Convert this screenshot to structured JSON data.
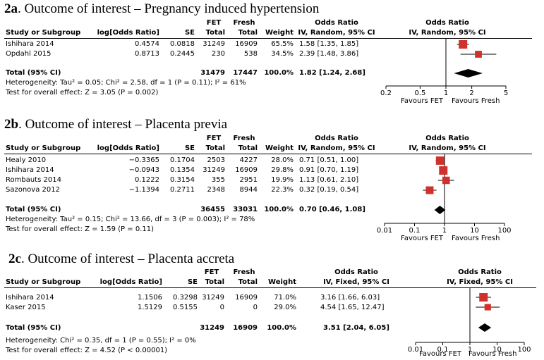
{
  "panels": [
    {
      "title_bold": "2a",
      "title_rest": ". Outcome of interest – Pregnancy induced hypertension",
      "hdr": {
        "study": "Study or Subgroup",
        "logor": "log[Odds Ratio]",
        "se": "SE",
        "fet_top": "FET",
        "fet": "Total",
        "fresh_top": "Fresh",
        "fresh": "Total",
        "weight": "Weight",
        "or_top": "Odds Ratio",
        "or": "IV, Random, 95% CI",
        "plot_top": "Odds Ratio",
        "plot": "IV, Random, 95% CI"
      },
      "rows": [
        {
          "study": "Ishihara 2014",
          "logor": "0.4574",
          "se": "0.0818",
          "fet": "31249",
          "fresh": "16909",
          "weight": "65.5%",
          "ci": "1.58 [1.35, 1.85]"
        },
        {
          "study": "Opdahl 2015",
          "logor": "0.8713",
          "se": "0.2445",
          "fet": "230",
          "fresh": "538",
          "weight": "34.5%",
          "ci": "2.39 [1.48, 3.86]"
        }
      ],
      "total": {
        "label": "Total (95% CI)",
        "fet": "31479",
        "fresh": "17447",
        "weight": "100.0%",
        "ci": "1.82 [1.24, 2.68]"
      },
      "het": "Heterogeneity: Tau² = 0.05; Chi² = 2.58, df = 1 (P = 0.11); I² = 61%",
      "test": "Test for overall effect: Z = 3.05 (P = 0.002)",
      "axis": {
        "ticks": [
          "0.2",
          "0.5",
          "1",
          "2",
          "5"
        ],
        "left": "Favours FET",
        "right": "Favours Fresh"
      }
    },
    {
      "title_bold": "2b",
      "title_rest": ". Outcome of interest – Placenta previa",
      "hdr": {
        "study": "Study or Subgroup",
        "logor": "log[Odds Ratio]",
        "se": "SE",
        "fet_top": "FET",
        "fet": "Total",
        "fresh_top": "Fresh",
        "fresh": "Total",
        "weight": "Weight",
        "or_top": "Odds Ratio",
        "or": "IV, Random, 95% CI",
        "plot_top": "Odds Ratio",
        "plot": "IV, Random, 95% CI"
      },
      "rows": [
        {
          "study": "Healy 2010",
          "logor": "−0.3365",
          "se": "0.1704",
          "fet": "2503",
          "fresh": "4227",
          "weight": "28.0%",
          "ci": "0.71 [0.51, 1.00]"
        },
        {
          "study": "Ishihara 2014",
          "logor": "−0.0943",
          "se": "0.1354",
          "fet": "31249",
          "fresh": "16909",
          "weight": "29.8%",
          "ci": "0.91 [0.70, 1.19]"
        },
        {
          "study": "Rombauts 2014",
          "logor": "0.1222",
          "se": "0.3154",
          "fet": "355",
          "fresh": "2951",
          "weight": "19.9%",
          "ci": "1.13 [0.61, 2.10]"
        },
        {
          "study": "Sazonova 2012",
          "logor": "−1.1394",
          "se": "0.2711",
          "fet": "2348",
          "fresh": "8944",
          "weight": "22.3%",
          "ci": "0.32 [0.19, 0.54]"
        }
      ],
      "total": {
        "label": "Total (95% CI)",
        "fet": "36455",
        "fresh": "33031",
        "weight": "100.0%",
        "ci": "0.70 [0.46, 1.08]"
      },
      "het": "Heterogeneity: Tau² = 0.15; Chi² = 13.66, df = 3 (P = 0.003); I² = 78%",
      "test": "Test for overall effect: Z = 1.59 (P = 0.11)",
      "axis": {
        "ticks": [
          "0.01",
          "0.1",
          "1",
          "10",
          "100"
        ],
        "left": "Favours FET",
        "right": "Favours Fresh"
      }
    },
    {
      "title_bold": "2c",
      "title_rest": ". Outcome of interest – Placenta accreta",
      "hdr": {
        "study": "Study or Subgroup",
        "logor": "log[Odds Ratio]",
        "se": "SE",
        "fet_top": "FET",
        "fet": "Total",
        "fresh_top": "Fresh",
        "fresh": "Total",
        "weight": "Weight",
        "or_top": "Odds Ratio",
        "or": "IV, Fixed, 95% CI",
        "plot_top": "Odds Ratio",
        "plot": "IV, Fixed, 95% CI"
      },
      "rows": [
        {
          "study": "Ishihara 2014",
          "logor": "1.1506",
          "se": "0.3298",
          "fet": "31249",
          "fresh": "16909",
          "weight": "71.0%",
          "ci": "3.16 [1.66, 6.03]"
        },
        {
          "study": "Kaser 2015",
          "logor": "1.5129",
          "se": "0.5155",
          "fet": "0",
          "fresh": "0",
          "weight": "29.0%",
          "ci": "4.54 [1.65, 12.47]"
        }
      ],
      "total": {
        "label": "Total (95% CI)",
        "fet": "31249",
        "fresh": "16909",
        "weight": "100.0%",
        "ci": "3.51 [2.04, 6.05]"
      },
      "het": "Heterogeneity: Chi² = 0.35, df = 1 (P = 0.55); I² = 0%",
      "test": "Test for overall effect: Z = 4.52 (P < 0.00001)",
      "axis": {
        "ticks": [
          "0.01",
          "0.1",
          "1",
          "10",
          "100"
        ],
        "left": "Favours FET",
        "right": "Favours Fresh"
      }
    }
  ],
  "chart_data": [
    {
      "type": "forest",
      "scale": "log",
      "xlim": [
        0.2,
        5
      ],
      "ticks": [
        0.2,
        0.5,
        1,
        2,
        5
      ],
      "studies": [
        {
          "name": "Ishihara 2014",
          "or": 1.58,
          "lo": 1.35,
          "hi": 1.85,
          "weight": 65.5
        },
        {
          "name": "Opdahl 2015",
          "or": 2.39,
          "lo": 1.48,
          "hi": 3.86,
          "weight": 34.5
        }
      ],
      "total": {
        "or": 1.82,
        "lo": 1.24,
        "hi": 2.68
      },
      "colors": {
        "marker": "#d0312d",
        "diamond": "#000000"
      }
    },
    {
      "type": "forest",
      "scale": "log",
      "xlim": [
        0.01,
        100
      ],
      "ticks": [
        0.01,
        0.1,
        1,
        10,
        100
      ],
      "studies": [
        {
          "name": "Healy 2010",
          "or": 0.71,
          "lo": 0.51,
          "hi": 1.0,
          "weight": 28.0
        },
        {
          "name": "Ishihara 2014",
          "or": 0.91,
          "lo": 0.7,
          "hi": 1.19,
          "weight": 29.8
        },
        {
          "name": "Rombauts 2014",
          "or": 1.13,
          "lo": 0.61,
          "hi": 2.1,
          "weight": 19.9
        },
        {
          "name": "Sazonova 2012",
          "or": 0.32,
          "lo": 0.19,
          "hi": 0.54,
          "weight": 22.3
        }
      ],
      "total": {
        "or": 0.7,
        "lo": 0.46,
        "hi": 1.08
      },
      "colors": {
        "marker": "#d0312d",
        "diamond": "#000000"
      }
    },
    {
      "type": "forest",
      "scale": "log",
      "xlim": [
        0.01,
        100
      ],
      "ticks": [
        0.01,
        0.1,
        1,
        10,
        100
      ],
      "studies": [
        {
          "name": "Ishihara 2014",
          "or": 3.16,
          "lo": 1.66,
          "hi": 6.03,
          "weight": 71.0
        },
        {
          "name": "Kaser 2015",
          "or": 4.54,
          "lo": 1.65,
          "hi": 12.47,
          "weight": 29.0
        }
      ],
      "total": {
        "or": 3.51,
        "lo": 2.04,
        "hi": 6.05
      },
      "colors": {
        "marker": "#d0312d",
        "diamond": "#000000"
      }
    }
  ]
}
